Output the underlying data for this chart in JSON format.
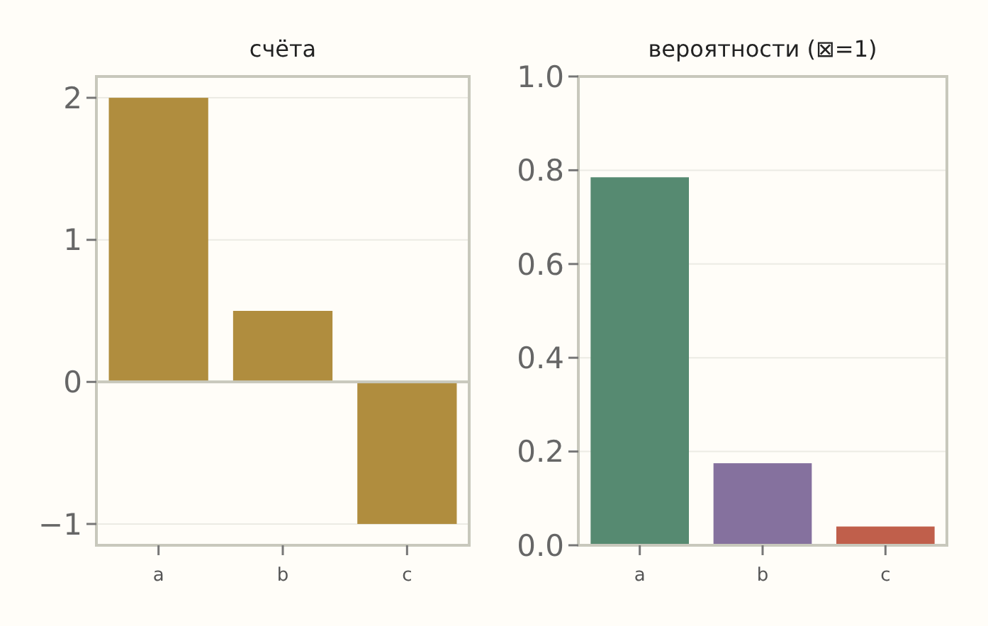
{
  "chart_data": [
    {
      "type": "bar",
      "title": "счёта",
      "categories": [
        "a",
        "b",
        "c"
      ],
      "values": [
        2,
        0.5,
        -1
      ],
      "color": "#b08d3e",
      "ylim": [
        -1.15,
        2.15
      ],
      "yticks": [
        -1,
        0,
        1,
        2
      ],
      "grid": "y"
    },
    {
      "type": "bar",
      "title": "вероятности (⊠=1)",
      "categories": [
        "a",
        "b",
        "c"
      ],
      "values": [
        0.785,
        0.175,
        0.04
      ],
      "colors": [
        "#568a71",
        "#85719e",
        "#c05f4b"
      ],
      "ylim": [
        0,
        1
      ],
      "yticks": [
        {
          "value": 0,
          "label": "0.0"
        },
        0.2,
        0.4,
        0.6,
        0.8,
        {
          "value": 1,
          "label": "1.0"
        }
      ],
      "grid": "y"
    }
  ]
}
